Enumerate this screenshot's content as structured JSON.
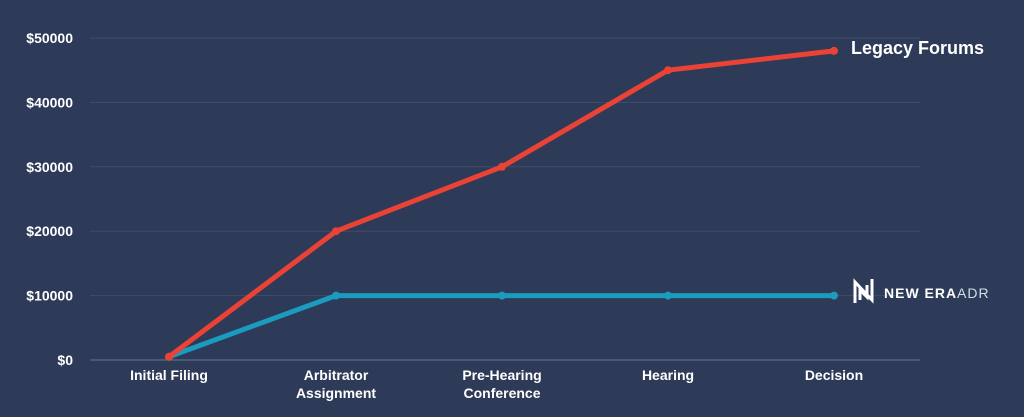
{
  "chart_data": {
    "type": "line",
    "categories": [
      [
        "Initial Filing"
      ],
      [
        "Arbitrator",
        "Assignment"
      ],
      [
        "Pre-Hearing",
        "Conference"
      ],
      [
        "Hearing"
      ],
      [
        "Decision"
      ]
    ],
    "y_ticks": [
      "$0",
      "$10000",
      "$20000",
      "$30000",
      "$40000",
      "$50000"
    ],
    "ylim": [
      0,
      50000
    ],
    "grid": true,
    "series": [
      {
        "name": "Legacy Forums",
        "color": "#ea4335",
        "values": [
          500,
          20000,
          30000,
          45000,
          48000
        ]
      },
      {
        "name": "",
        "color": "#1a9bbf",
        "values": [
          500,
          10000,
          10000,
          10000,
          10000
        ]
      }
    ],
    "logo": {
      "icon": "n-mark-logo-icon",
      "text_bold": "NEW ERA",
      "text_light": "ADR"
    }
  }
}
